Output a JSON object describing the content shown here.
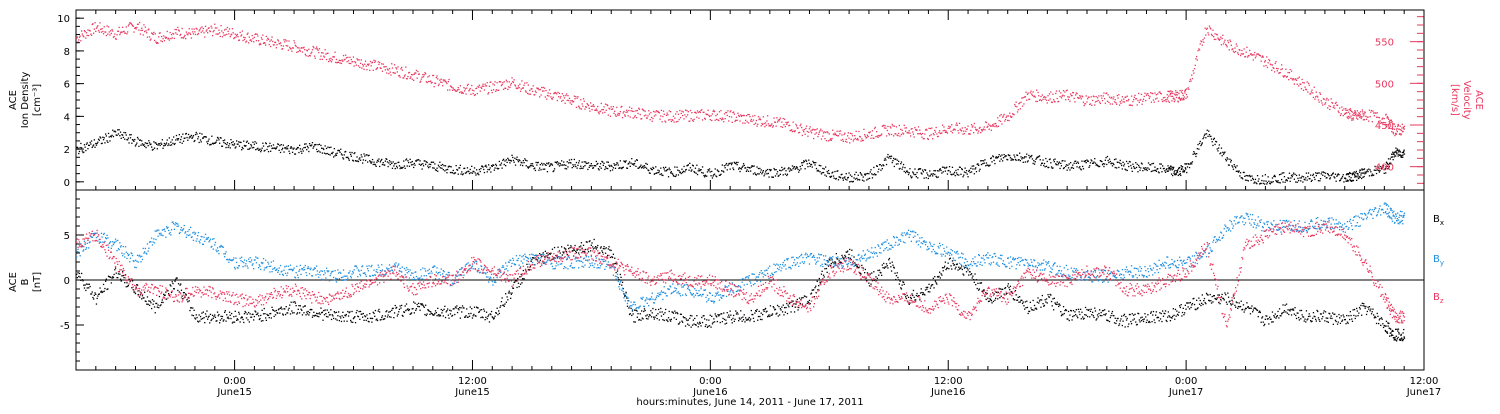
{
  "colors": {
    "black": "#000000",
    "velocity": "#e8395f",
    "bx": "#000000",
    "by": "#1f8fe0",
    "bz": "#e8395f"
  },
  "xlabel": "hours:minutes, June 14, 2011 - June 17, 2011",
  "chart_data": [
    {
      "type": "scatter",
      "panel": "top",
      "ylabel_left": [
        "ACE",
        "Ion Density",
        "[cm⁻³]"
      ],
      "ylabel_right": [
        "ACE",
        "Velocity",
        "[km/s]"
      ],
      "x_unit": "hours since 2011-06-14 00:00",
      "xlim": [
        16.0,
        84.0
      ],
      "ylim_left": [
        -0.5,
        10.5
      ],
      "ylim_right": [
        372,
        588
      ],
      "left_ticks": [
        0,
        2,
        4,
        6,
        8,
        10
      ],
      "right_ticks": [
        400,
        450,
        500,
        550
      ],
      "series": [
        {
          "axis": "left",
          "color": "#000000",
          "x": [
            16.0,
            17.0,
            18.0,
            19.0,
            20.0,
            21.0,
            22.0,
            23.0,
            24.0,
            25.0,
            26.0,
            27.0,
            28.0,
            29.0,
            30.0,
            31.0,
            32.0,
            33.0,
            34.0,
            35.0,
            36.0,
            37.0,
            38.0,
            39.0,
            40.0,
            41.0,
            42.0,
            43.0,
            44.0,
            45.0,
            46.0,
            47.0,
            48.0,
            49.0,
            50.0,
            51.0,
            52.0,
            53.0,
            54.0,
            55.0,
            56.0,
            57.0,
            58.0,
            59.0,
            60.0,
            61.0,
            62.0,
            63.0,
            64.0,
            65.0,
            66.0,
            67.0,
            68.0,
            69.0,
            70.0,
            71.0,
            71.5,
            72.0,
            73.0,
            74.0,
            75.0,
            76.0,
            77.0,
            78.0,
            79.0,
            80.0,
            80.5,
            81.0,
            82.0,
            82.5
          ],
          "y": [
            2.0,
            2.4,
            3.0,
            2.5,
            2.2,
            2.6,
            2.8,
            2.5,
            2.3,
            2.2,
            2.1,
            2.0,
            2.2,
            1.8,
            1.6,
            1.3,
            1.1,
            1.2,
            1.0,
            0.8,
            0.7,
            0.9,
            1.4,
            1.0,
            0.9,
            1.2,
            1.0,
            1.0,
            1.2,
            0.8,
            0.6,
            0.9,
            0.5,
            1.0,
            0.8,
            0.6,
            0.7,
            1.2,
            0.5,
            0.3,
            0.4,
            1.5,
            0.6,
            0.5,
            0.7,
            0.6,
            1.3,
            1.6,
            1.5,
            1.2,
            1.0,
            1.1,
            1.3,
            1.0,
            0.9,
            0.8,
            0.6,
            0.9,
            3.0,
            1.5,
            0.2,
            0.2,
            0.3,
            0.3,
            0.4,
            0.3,
            0.4,
            0.6,
            0.8,
            1.8
          ]
        },
        {
          "axis": "right",
          "color": "#e8395f",
          "x": [
            16.0,
            17.0,
            18.0,
            19.0,
            20.0,
            21.0,
            22.0,
            23.0,
            24.0,
            25.0,
            26.0,
            27.0,
            28.0,
            29.0,
            30.0,
            31.0,
            32.0,
            33.0,
            34.0,
            35.0,
            36.0,
            37.0,
            38.0,
            39.0,
            40.0,
            41.0,
            42.0,
            43.0,
            44.0,
            45.0,
            46.0,
            47.0,
            48.0,
            49.0,
            50.0,
            51.0,
            52.0,
            53.0,
            54.0,
            55.0,
            56.0,
            57.0,
            58.0,
            59.0,
            60.0,
            61.0,
            62.0,
            63.0,
            64.0,
            65.0,
            66.0,
            67.0,
            68.0,
            69.0,
            70.0,
            71.0,
            71.5,
            72.0,
            73.0,
            74.0,
            75.0,
            76.0,
            77.0,
            78.0,
            79.0,
            80.0,
            80.5,
            81.0,
            82.0,
            82.5
          ],
          "y": [
            555,
            568,
            560,
            570,
            555,
            562,
            560,
            565,
            560,
            554,
            549,
            545,
            538,
            532,
            527,
            522,
            517,
            511,
            504,
            497,
            492,
            496,
            502,
            492,
            487,
            480,
            473,
            467,
            466,
            462,
            461,
            462,
            463,
            461,
            457,
            455,
            450,
            442,
            438,
            436,
            440,
            445,
            444,
            440,
            447,
            445,
            448,
            461,
            487,
            484,
            486,
            480,
            483,
            480,
            483,
            485,
            485,
            488,
            568,
            548,
            538,
            527,
            514,
            497,
            479,
            466,
            461,
            463,
            458,
            445
          ]
        }
      ]
    },
    {
      "type": "scatter",
      "panel": "bottom",
      "ylabel_left": [
        "ACE",
        "B",
        "[nT]"
      ],
      "x_unit": "hours since 2011-06-14 00:00",
      "xlim": [
        16.0,
        84.0
      ],
      "ylim": [
        -10,
        10
      ],
      "left_ticks": [
        -5,
        0,
        5
      ],
      "series": [
        {
          "name": "B",
          "name_sub": "x",
          "color": "#000000",
          "x": [
            16.0,
            17.0,
            18.0,
            19.0,
            20.0,
            21.0,
            22.0,
            23.0,
            24.0,
            25.0,
            26.0,
            27.0,
            28.0,
            29.0,
            30.0,
            31.0,
            32.0,
            33.0,
            34.0,
            35.0,
            36.0,
            37.0,
            38.0,
            39.0,
            40.0,
            41.0,
            42.0,
            43.0,
            44.0,
            45.0,
            46.0,
            47.0,
            48.0,
            49.0,
            50.0,
            51.0,
            52.0,
            53.0,
            54.0,
            55.0,
            56.0,
            57.0,
            58.0,
            59.0,
            60.0,
            61.0,
            62.0,
            63.0,
            64.0,
            65.0,
            66.0,
            67.0,
            68.0,
            69.0,
            70.0,
            71.0,
            72.0,
            73.0,
            74.0,
            75.0,
            76.0,
            77.0,
            78.0,
            79.0,
            80.0,
            81.0,
            82.0,
            82.5
          ],
          "y": [
            1,
            -2,
            1,
            -1,
            -3,
            0,
            -4,
            -4,
            -4,
            -4,
            -3.5,
            -3,
            -3.5,
            -4,
            -4,
            -4,
            -3.5,
            -3,
            -3.5,
            -3.5,
            -3.5,
            -4,
            -1,
            2,
            3,
            3.5,
            4,
            3,
            -4,
            -3.5,
            -4,
            -4.5,
            -4.5,
            -4,
            -4,
            -3.5,
            -3,
            -2,
            2,
            3,
            0,
            2,
            -2,
            -1,
            2,
            1,
            -2,
            -1,
            -3,
            -2,
            -4,
            -3.5,
            -4,
            -4.5,
            -4,
            -4,
            -3,
            -2,
            -2,
            -3,
            -4.5,
            -3,
            -4,
            -4,
            -4.5,
            -3,
            -5,
            -6
          ]
        },
        {
          "name": "B",
          "name_sub": "y",
          "color": "#1f8fe0",
          "x": [
            16.0,
            17.0,
            18.0,
            19.0,
            20.0,
            21.0,
            22.0,
            23.0,
            24.0,
            25.0,
            26.0,
            27.0,
            28.0,
            29.0,
            30.0,
            31.0,
            32.0,
            33.0,
            34.0,
            35.0,
            36.0,
            37.0,
            38.0,
            39.0,
            40.0,
            41.0,
            42.0,
            43.0,
            44.0,
            45.0,
            46.0,
            47.0,
            48.0,
            49.0,
            50.0,
            51.0,
            52.0,
            53.0,
            54.0,
            55.0,
            56.0,
            57.0,
            58.0,
            59.0,
            60.0,
            61.0,
            62.0,
            63.0,
            64.0,
            65.0,
            66.0,
            67.0,
            68.0,
            69.0,
            70.0,
            71.0,
            72.0,
            73.0,
            74.0,
            75.0,
            76.0,
            77.0,
            78.0,
            79.0,
            80.0,
            81.0,
            82.0,
            82.5
          ],
          "y": [
            3,
            5,
            4,
            2,
            5,
            6,
            5,
            4,
            2,
            2,
            1.5,
            1,
            1,
            0.5,
            1,
            1,
            1.5,
            0.5,
            1,
            0,
            2,
            0,
            2,
            2.5,
            2,
            2,
            2,
            1.5,
            -3,
            -2,
            -1,
            -1,
            -2,
            -1,
            0,
            1,
            2,
            2.5,
            2,
            2,
            3,
            4,
            5,
            4,
            3,
            2,
            2.5,
            2,
            2,
            1.5,
            1,
            0.5,
            0.5,
            1,
            1,
            2,
            2,
            3,
            6,
            7,
            6,
            6,
            6,
            6.5,
            6,
            7,
            8,
            7
          ]
        },
        {
          "name": "B",
          "name_sub": "z",
          "color": "#e8395f",
          "x": [
            16.0,
            17.0,
            18.0,
            19.0,
            20.0,
            21.0,
            22.0,
            23.0,
            24.0,
            25.0,
            26.0,
            27.0,
            28.0,
            29.0,
            30.0,
            31.0,
            32.0,
            33.0,
            34.0,
            35.0,
            36.0,
            37.0,
            38.0,
            39.0,
            40.0,
            41.0,
            42.0,
            43.0,
            44.0,
            45.0,
            46.0,
            47.0,
            48.0,
            49.0,
            50.0,
            51.0,
            52.0,
            53.0,
            54.0,
            55.0,
            56.0,
            57.0,
            58.0,
            59.0,
            60.0,
            61.0,
            62.0,
            63.0,
            64.0,
            65.0,
            66.0,
            67.0,
            68.0,
            69.0,
            70.0,
            71.0,
            72.0,
            73.0,
            74.0,
            75.0,
            76.0,
            77.0,
            78.0,
            79.0,
            80.0,
            81.0,
            82.0,
            82.5
          ],
          "y": [
            4,
            5,
            2,
            -1,
            -1,
            -2,
            -1,
            -1.5,
            -2,
            -2.5,
            -1.5,
            -1,
            -2,
            -2,
            -1,
            0,
            1,
            -1,
            0,
            0,
            2,
            1,
            0,
            2,
            2.5,
            3,
            3,
            2,
            1,
            0,
            0.5,
            0,
            0,
            -1,
            -2,
            0,
            -2,
            -3,
            1,
            2,
            0,
            -2,
            -2,
            -3,
            -2,
            -4,
            -1,
            -2,
            1,
            0,
            0,
            1,
            1,
            -1,
            -1,
            0,
            1,
            4,
            -5,
            4,
            5,
            6,
            5.5,
            6,
            5,
            2,
            -2,
            -4
          ]
        }
      ]
    }
  ],
  "x_ticks": [
    {
      "hour": 24,
      "label": "0:00",
      "sublabel": "June15"
    },
    {
      "hour": 36,
      "label": "12:00",
      "sublabel": "June15"
    },
    {
      "hour": 48,
      "label": "0:00",
      "sublabel": "June16"
    },
    {
      "hour": 60,
      "label": "12:00",
      "sublabel": "June16"
    },
    {
      "hour": 72,
      "label": "0:00",
      "sublabel": "June17"
    },
    {
      "hour": 84,
      "label": "12:00",
      "sublabel": "June17"
    }
  ]
}
